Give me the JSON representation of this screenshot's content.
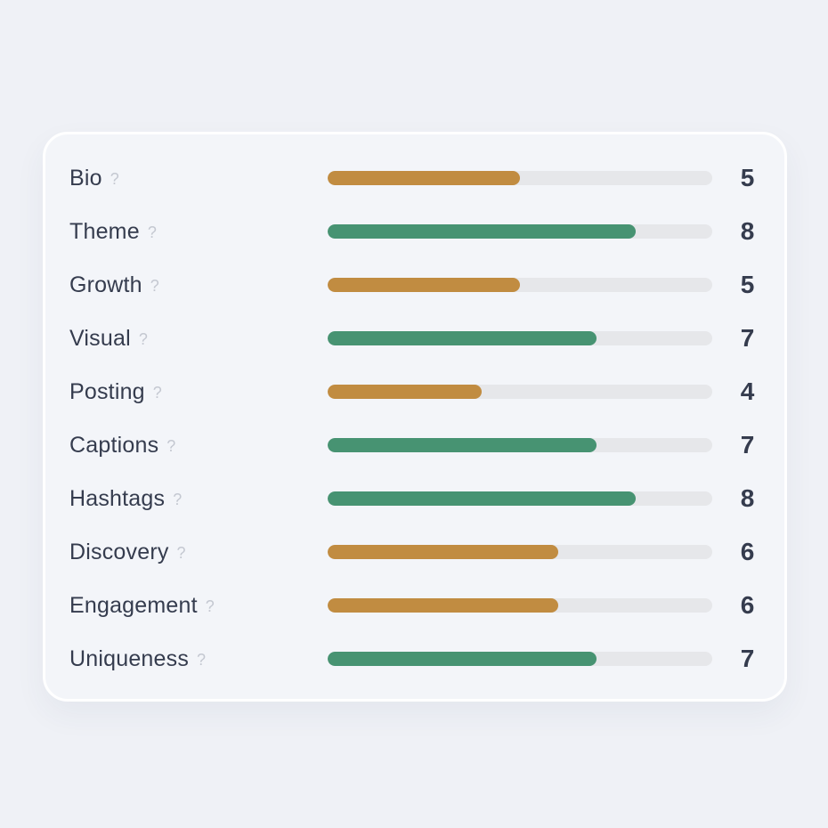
{
  "chart_data": {
    "type": "bar",
    "orientation": "horizontal",
    "title": "",
    "xlabel": "",
    "ylabel": "",
    "categories": [
      "Bio",
      "Theme",
      "Growth",
      "Visual",
      "Posting",
      "Captions",
      "Hashtags",
      "Discovery",
      "Engagement",
      "Uniqueness"
    ],
    "values": [
      5,
      8,
      5,
      7,
      4,
      7,
      8,
      6,
      6,
      7
    ],
    "value_range": [
      0,
      10
    ],
    "bar_colors": [
      "#c18c41",
      "#479372",
      "#c18c41",
      "#479372",
      "#c18c41",
      "#479372",
      "#479372",
      "#c18c41",
      "#c18c41",
      "#479372"
    ],
    "grid": false,
    "legend": false
  },
  "card": {
    "help_icon": "?"
  },
  "colors": {
    "page_bg": "#eff1f6",
    "card_bg": "#f3f5f9",
    "card_border": "#ffffff",
    "bar_track": "#e6e7ea",
    "bar_green": "#479372",
    "bar_orange": "#c18c41",
    "label_text": "#353c4e",
    "score_text": "#353c4e",
    "help_text": "#c4c8d1"
  }
}
